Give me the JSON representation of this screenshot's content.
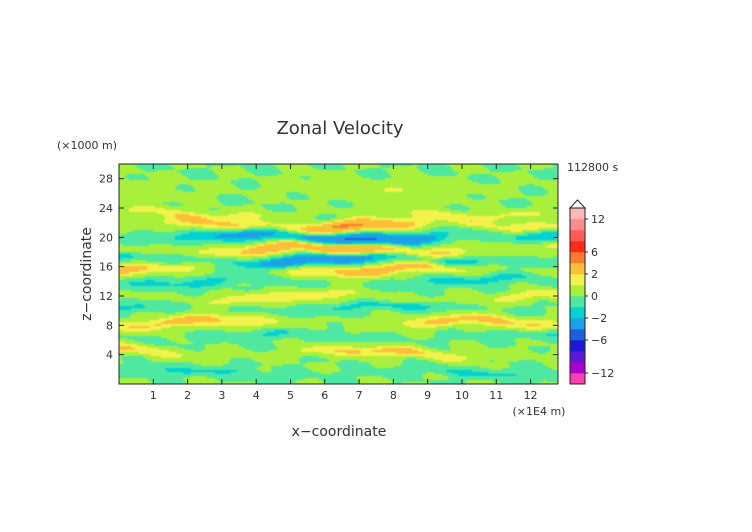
{
  "chart_data": {
    "type": "heatmap",
    "title": "Zonal Velocity",
    "time_label": "112800 s",
    "xlabel": "x−coordinate",
    "ylabel": "z−coordinate",
    "x_unit": "(×1E4 m)",
    "y_unit": "(×1000 m)",
    "xlim": [
      0,
      12.8
    ],
    "ylim": [
      0,
      30
    ],
    "x_ticks": [
      1,
      2,
      3,
      4,
      5,
      6,
      7,
      8,
      9,
      10,
      11,
      12
    ],
    "y_ticks": [
      4,
      8,
      12,
      16,
      20,
      24,
      28
    ],
    "colorbar": {
      "levels": [
        -14,
        -12,
        -10,
        -8,
        -6,
        -4,
        -2,
        -1,
        0,
        1,
        2,
        4,
        6,
        8,
        10,
        12,
        14
      ],
      "labeled": [
        12,
        6,
        2,
        0,
        -2,
        -6,
        -12
      ],
      "colors": [
        "#ff3fb0",
        "#aa00cc",
        "#5a19d6",
        "#1a1ad6",
        "#1f5ee0",
        "#1f9fe8",
        "#00d2d2",
        "#4fe8a0",
        "#a8f03c",
        "#f2f24a",
        "#ffbe3a",
        "#ff7a30",
        "#ff2a1a",
        "#ff5a5a",
        "#ff8c8c",
        "#ffb8b8"
      ]
    },
    "bands": [
      {
        "z": 1.5,
        "amp": -1.2,
        "w": 0.6
      },
      {
        "z": 4.2,
        "amp": 2.4,
        "w": 0.7
      },
      {
        "z": 6.5,
        "amp": -1.0,
        "w": 0.6
      },
      {
        "z": 8.3,
        "amp": 2.6,
        "w": 0.8
      },
      {
        "z": 10.3,
        "amp": -1.3,
        "w": 0.6
      },
      {
        "z": 11.8,
        "amp": 2.0,
        "w": 0.7
      },
      {
        "z": 14.0,
        "amp": -1.4,
        "w": 0.7
      },
      {
        "z": 15.6,
        "amp": 3.0,
        "w": 0.8
      },
      {
        "z": 16.9,
        "amp": -3.2,
        "w": 0.7
      },
      {
        "z": 18.3,
        "amp": 3.4,
        "w": 0.8
      },
      {
        "z": 20.0,
        "amp": -3.8,
        "w": 0.8
      },
      {
        "z": 21.6,
        "amp": 3.2,
        "w": 0.8
      },
      {
        "z": 23.2,
        "amp": 1.4,
        "w": 0.7
      },
      {
        "z": 26.5,
        "amp": 0.9,
        "w": 1.4
      }
    ]
  }
}
